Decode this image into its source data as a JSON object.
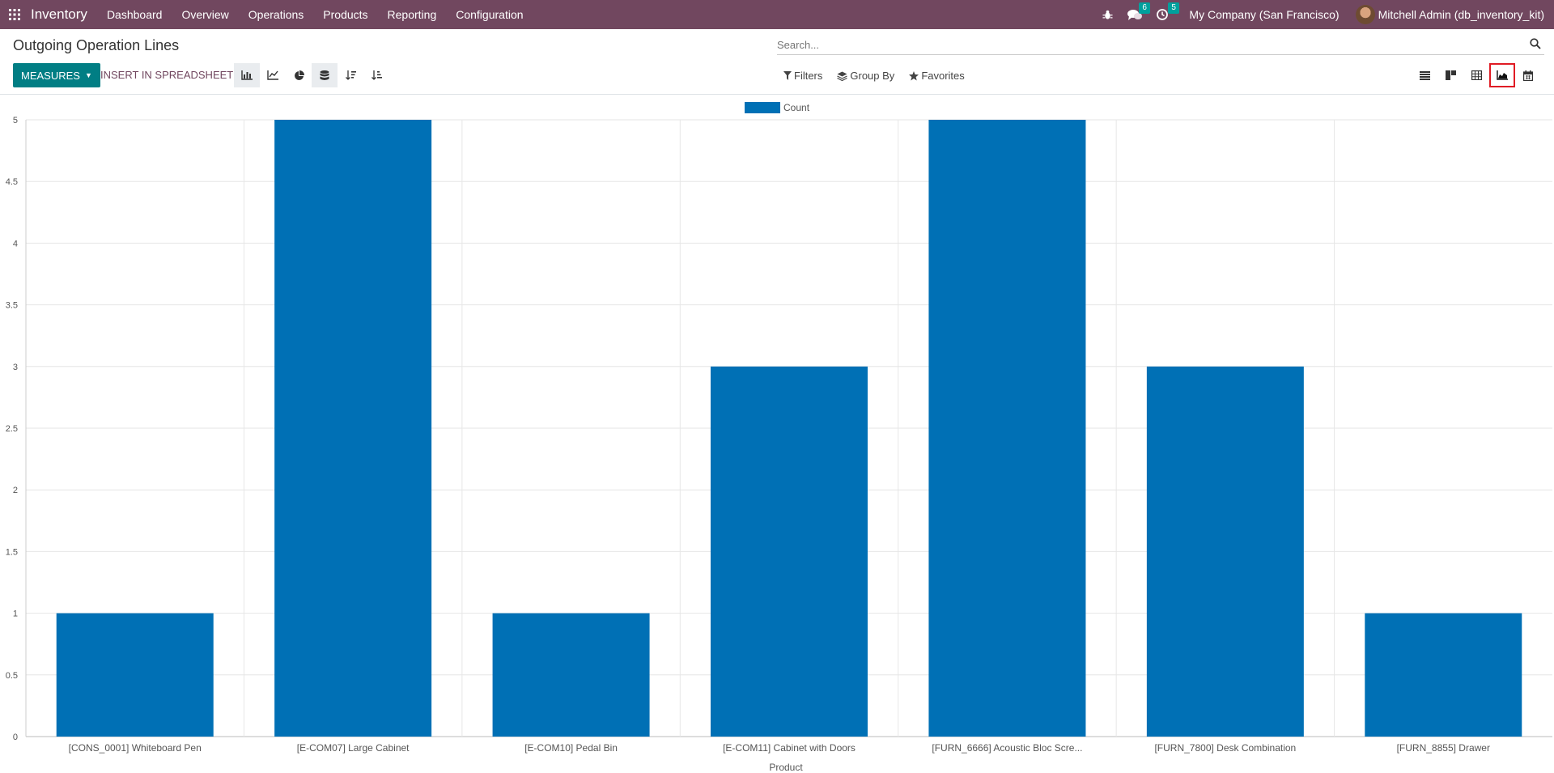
{
  "navbar": {
    "brand": "Inventory",
    "menu": [
      "Dashboard",
      "Overview",
      "Operations",
      "Products",
      "Reporting",
      "Configuration"
    ],
    "messages_count": "6",
    "activities_count": "5",
    "company": "My Company (San Francisco)",
    "user": "Mitchell Admin (db_inventory_kit)"
  },
  "page": {
    "title": "Outgoing Operation Lines",
    "search_placeholder": "Search..."
  },
  "toolbar": {
    "measures_label": "MEASURES",
    "spreadsheet_label": "INSERT IN SPREADSHEET",
    "filters_label": "Filters",
    "groupby_label": "Group By",
    "favorites_label": "Favorites"
  },
  "colors": {
    "navbar": "#71475f",
    "primary": "#017e84",
    "bar": "#0070b5",
    "badge": "#00a09d"
  },
  "chart_data": {
    "type": "bar",
    "categories": [
      "[CONS_0001] Whiteboard Pen",
      "[E-COM07] Large Cabinet",
      "[E-COM10] Pedal Bin",
      "[E-COM11] Cabinet with Doors",
      "[FURN_6666] Acoustic Bloc Scre...",
      "[FURN_7800] Desk Combination",
      "[FURN_8855] Drawer"
    ],
    "series": [
      {
        "name": "Count",
        "values": [
          1,
          5,
          1,
          3,
          5,
          3,
          1
        ]
      }
    ],
    "xlabel": "Product",
    "ylabel": "",
    "ylim": [
      0,
      5
    ],
    "yticks": [
      "0",
      "0.5",
      "1",
      "1.5",
      "2",
      "2.5",
      "3",
      "3.5",
      "4",
      "4.5",
      "5"
    ],
    "grid": true,
    "legend": "top-center"
  }
}
